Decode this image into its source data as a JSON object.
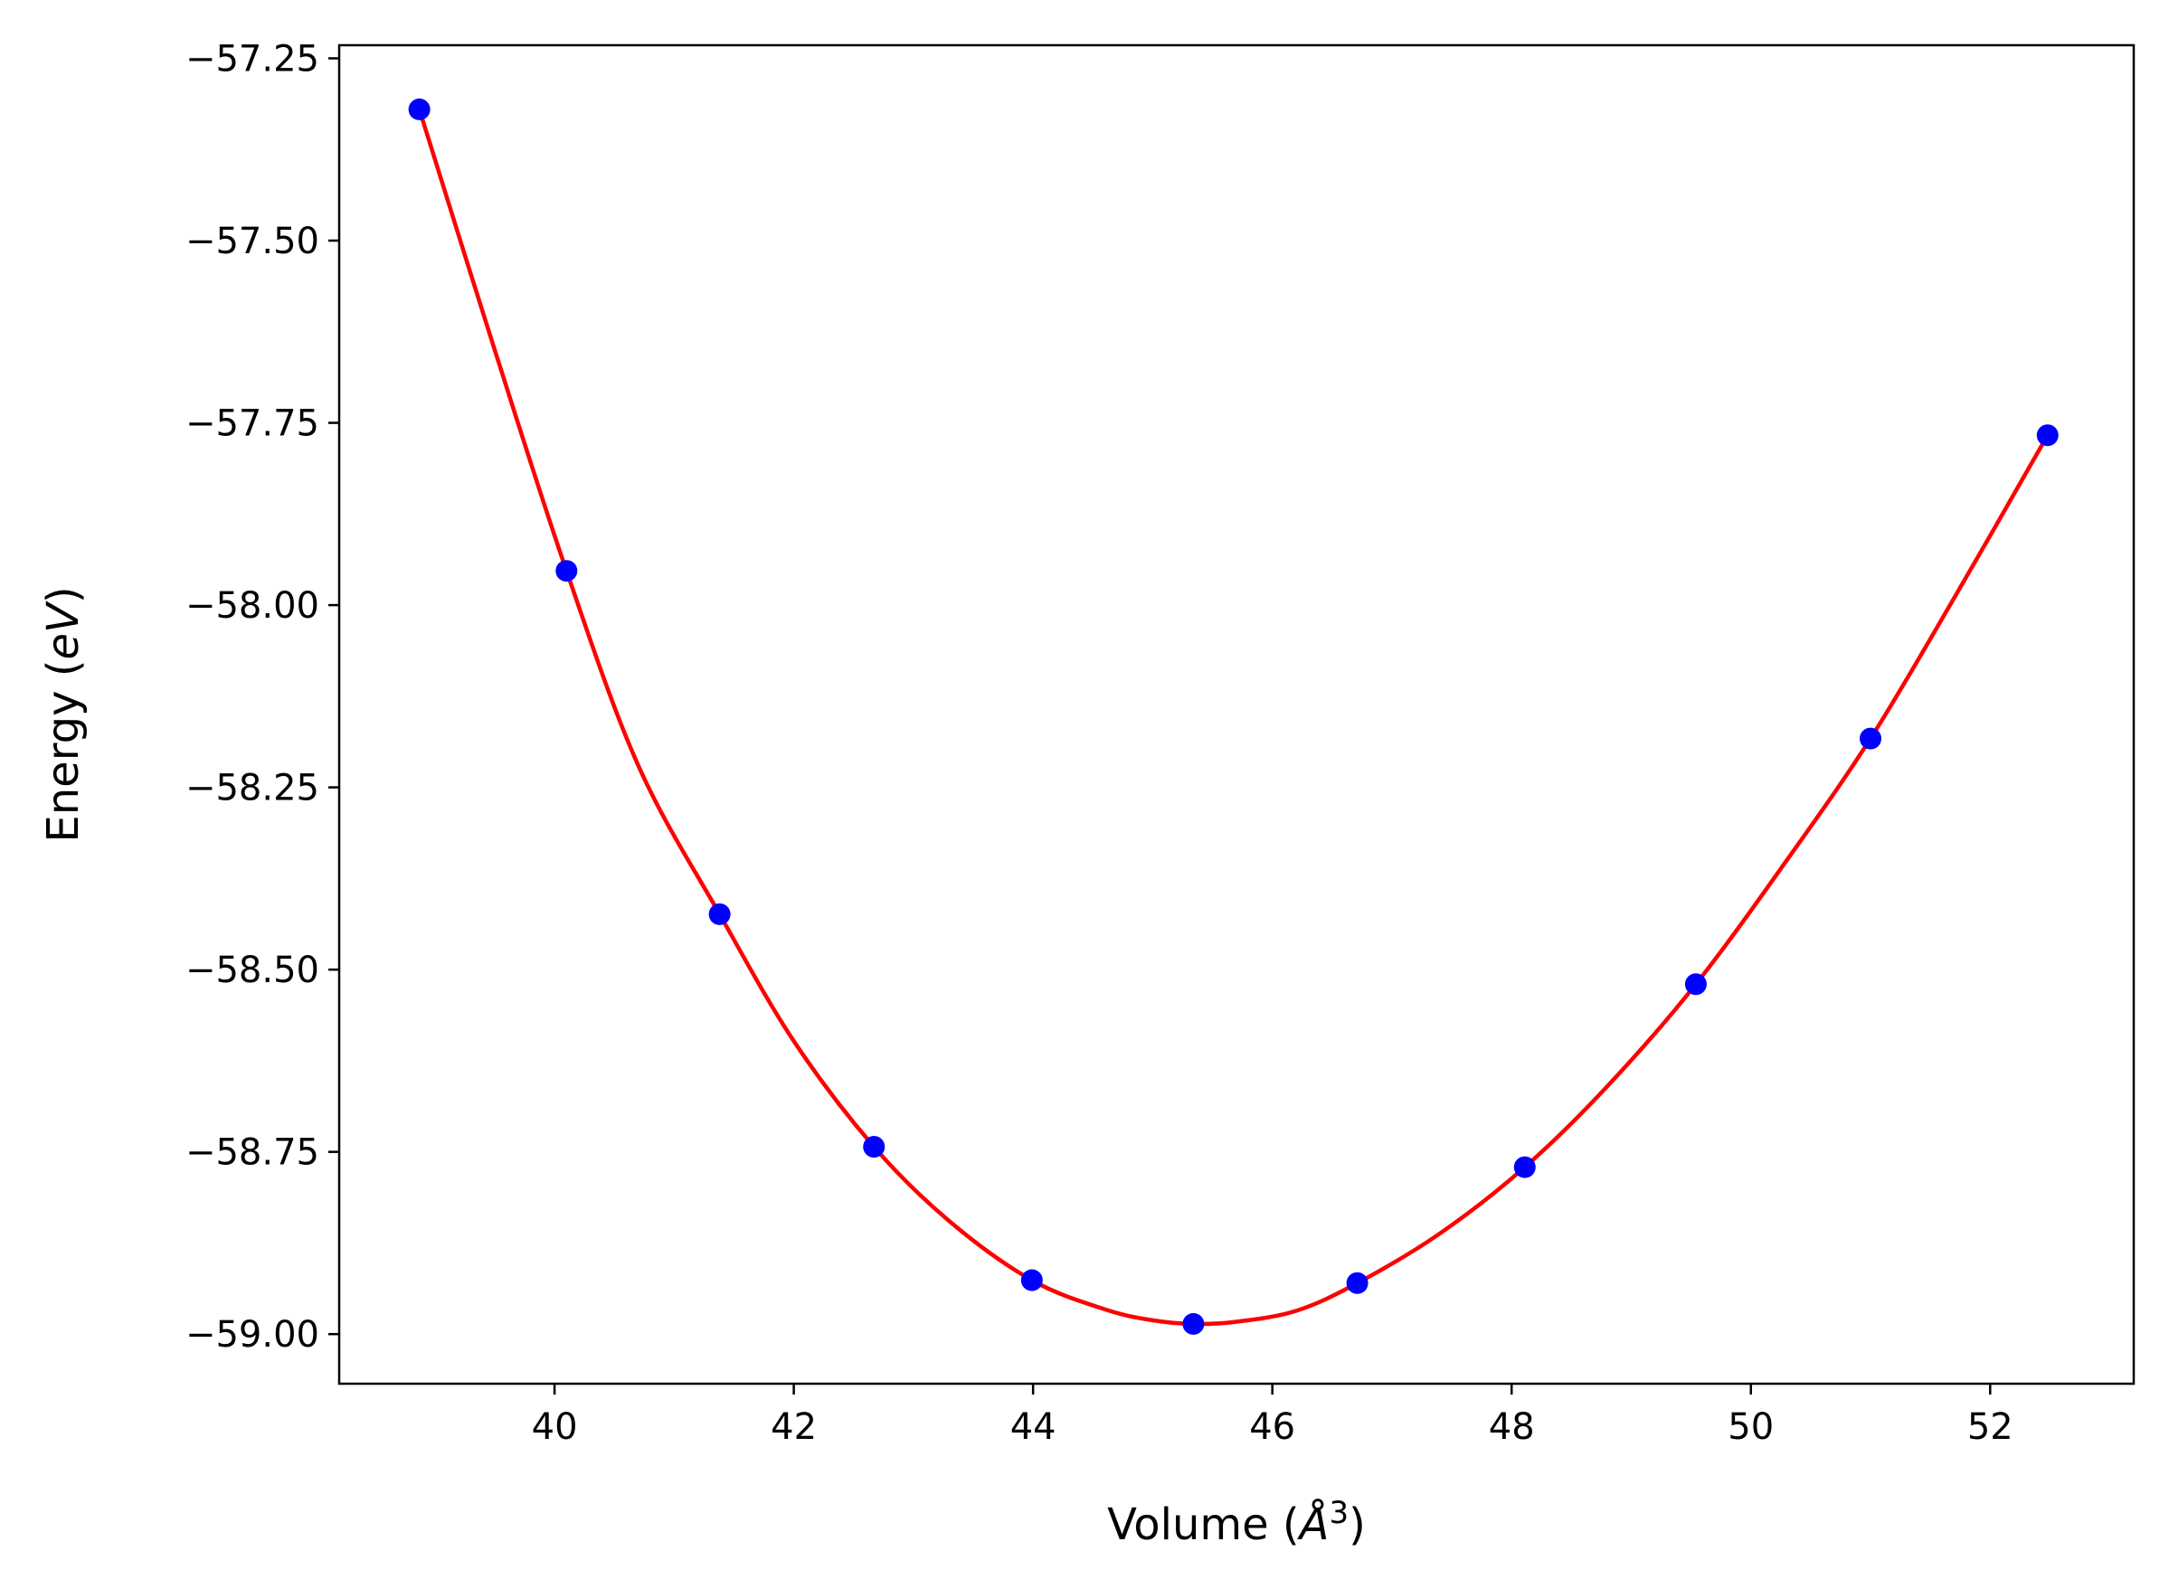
{
  "chart_data": {
    "type": "scatter",
    "title": "",
    "xlabel_parts": {
      "prefix": "Volume (",
      "symbol": "Å",
      "power": "3",
      "suffix": ")"
    },
    "ylabel_parts": {
      "prefix": "Energy (",
      "unit": "eV",
      "suffix": ")"
    },
    "xlim": [
      38.2,
      53.2
    ],
    "ylim": [
      -59.068,
      -57.232
    ],
    "x_ticks": [
      40,
      42,
      44,
      46,
      48,
      50,
      52
    ],
    "x_tick_labels": [
      "40",
      "42",
      "44",
      "46",
      "48",
      "50",
      "52"
    ],
    "y_ticks": [
      -57.25,
      -57.5,
      -57.75,
      -58.0,
      -58.25,
      -58.5,
      -58.75,
      -59.0
    ],
    "y_tick_labels": [
      "−57.25",
      "−57.50",
      "−57.75",
      "−58.00",
      "−58.25",
      "−58.50",
      "−58.75",
      "−59.00"
    ],
    "grid": false,
    "legend": "none",
    "series": [
      {
        "kind": "points",
        "color": "#0000ff",
        "x": [
          38.87,
          40.1,
          41.38,
          42.67,
          43.99,
          45.34,
          46.71,
          48.11,
          49.54,
          51.0,
          52.48
        ],
        "y": [
          -57.32,
          -57.953,
          -58.424,
          -58.743,
          -58.926,
          -58.986,
          -58.93,
          -58.771,
          -58.52,
          -58.183,
          -57.767
        ]
      },
      {
        "kind": "fit-curve",
        "color": "#ff0000",
        "x": [
          38.87,
          39.5,
          40.1,
          40.7,
          41.38,
          42.0,
          42.67,
          43.3,
          43.99,
          44.6,
          45.0,
          45.34,
          45.7,
          46.2,
          46.71,
          47.4,
          48.11,
          48.8,
          49.54,
          50.3,
          51.0,
          51.7,
          52.48
        ],
        "y": [
          -57.32,
          -57.65,
          -57.953,
          -58.22,
          -58.424,
          -58.598,
          -58.743,
          -58.845,
          -58.926,
          -58.966,
          -58.981,
          -58.986,
          -58.983,
          -58.968,
          -58.93,
          -58.862,
          -58.771,
          -58.66,
          -58.52,
          -58.35,
          -58.183,
          -57.99,
          -57.767
        ]
      }
    ]
  }
}
